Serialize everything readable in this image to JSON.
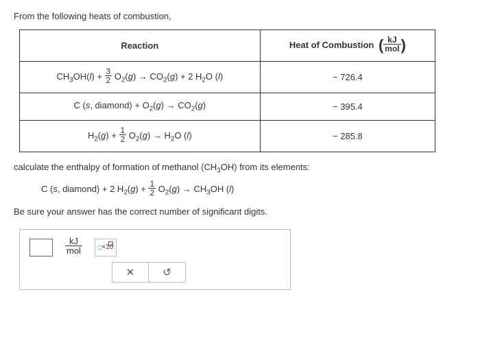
{
  "intro": "From the following heats of combustion,",
  "table": {
    "headers": {
      "reaction": "Reaction",
      "heat": "Heat of Combustion",
      "unit_top": "kJ",
      "unit_bot": "mol"
    },
    "rows": [
      {
        "reaction_html": "CH<sub>3</sub>OH(<i>l</i>) + <span class='frac'><span class='num'>3</span><span class='den'>2</span></span> O<sub>2</sub>(<i>g</i>) → CO<sub>2</sub>(<i>g</i>) + 2 H<sub>2</sub>O (<i>l</i>)",
        "heat": "− 726.4"
      },
      {
        "reaction_html": "C (<i>s</i>, diamond) + O<sub>2</sub>(<i>g</i>) → CO<sub>2</sub>(<i>g</i>)",
        "heat": "− 395.4"
      },
      {
        "reaction_html": "H<sub>2</sub>(<i>g</i>) + <span class='frac'><span class='num'>1</span><span class='den'>2</span></span> O<sub>2</sub>(<i>g</i>) → H<sub>2</sub>O (<i>l</i>)",
        "heat": "− 285.8"
      }
    ]
  },
  "prompt_pre": "calculate the enthalpy of formation of methanol ",
  "prompt_chem_html": "(CH<sub>3</sub>OH)",
  "prompt_post": " from its elements:",
  "target_rxn_html": "C (<i>s</i>, diamond) + 2 H<sub>2</sub>(<i>g</i>) + <span class='frac'><span class='num'>1</span><span class='den'>2</span></span> O<sub>2</sub>(<i>g</i>) → CH<sub>3</sub>OH (<i>l</i>)",
  "sigfigs": "Be sure your answer has the correct number of significant digits.",
  "answer_unit": {
    "top": "kJ",
    "bot": "mol"
  },
  "sci_label": "×10"
}
